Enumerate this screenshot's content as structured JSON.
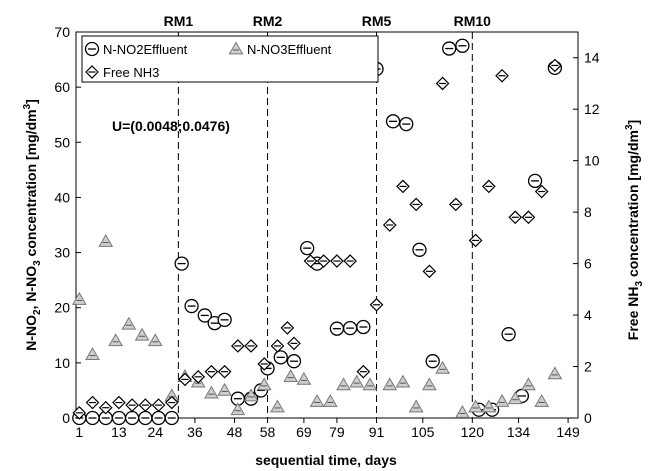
{
  "chart_data": {
    "type": "scatter",
    "xlabel": "sequential time, days",
    "ylabel_left": "N-NO2, N-NO3 concentration [mg/dm3]",
    "ylabel_right": "Free NH3 concentration [mg/dm3]",
    "xlim": [
      0,
      152
    ],
    "ylim_left": [
      0,
      70
    ],
    "ylim_right": [
      0,
      15
    ],
    "xticks": [
      1,
      13,
      24,
      36,
      48,
      58,
      69,
      79,
      91,
      105,
      120,
      134,
      149
    ],
    "yticks_left": [
      0,
      10,
      20,
      30,
      40,
      50,
      60,
      70
    ],
    "yticks_right": [
      0,
      2,
      4,
      6,
      8,
      10,
      12,
      14
    ],
    "legend_position": "top-left",
    "annotation": "U=(0.0048;0.0476)",
    "reference_lines": [
      {
        "x": 31,
        "label": "RM1"
      },
      {
        "x": 58,
        "label": "RM2"
      },
      {
        "x": 91,
        "label": "RM5"
      },
      {
        "x": 120,
        "label": "RM10"
      }
    ],
    "series": [
      {
        "name": "N-NO2Effluent",
        "axis": "left",
        "marker": "circle-dash",
        "points": [
          [
            1,
            0
          ],
          [
            5,
            0
          ],
          [
            9,
            0
          ],
          [
            13,
            0
          ],
          [
            17,
            0
          ],
          [
            21,
            0
          ],
          [
            25,
            0
          ],
          [
            29,
            0
          ],
          [
            32,
            28
          ],
          [
            35,
            20.3
          ],
          [
            39,
            18.6
          ],
          [
            42,
            17.2
          ],
          [
            45,
            17.8
          ],
          [
            49,
            3.5
          ],
          [
            53,
            3.5
          ],
          [
            56,
            5
          ],
          [
            58,
            9
          ],
          [
            62,
            11
          ],
          [
            66,
            10.3
          ],
          [
            70,
            30.8
          ],
          [
            73,
            28
          ],
          [
            79,
            16.2
          ],
          [
            83,
            16.3
          ],
          [
            87,
            16.5
          ],
          [
            91,
            63.3
          ],
          [
            96,
            53.8
          ],
          [
            100,
            53.3
          ],
          [
            104,
            30.5
          ],
          [
            108,
            10.3
          ],
          [
            113,
            67
          ],
          [
            117,
            67.5
          ],
          [
            122,
            1.5
          ],
          [
            126,
            1.5
          ],
          [
            131,
            15.2
          ],
          [
            135,
            4
          ],
          [
            139,
            43
          ],
          [
            145,
            63.5
          ]
        ]
      },
      {
        "name": "N-NO3Effluent",
        "axis": "left",
        "marker": "triangle-dash",
        "points": [
          [
            1,
            21.5
          ],
          [
            5,
            11.5
          ],
          [
            9,
            32
          ],
          [
            12,
            14
          ],
          [
            16,
            17
          ],
          [
            20,
            15
          ],
          [
            24,
            14
          ],
          [
            29,
            4
          ],
          [
            33,
            7.5
          ],
          [
            37,
            6.5
          ],
          [
            41,
            4.5
          ],
          [
            45,
            5
          ],
          [
            49,
            1.5
          ],
          [
            53,
            4
          ],
          [
            57,
            6
          ],
          [
            61,
            2
          ],
          [
            65,
            7.5
          ],
          [
            69,
            7
          ],
          [
            73,
            3
          ],
          [
            77,
            3
          ],
          [
            81,
            6
          ],
          [
            85,
            6.5
          ],
          [
            89,
            6
          ],
          [
            95,
            6
          ],
          [
            99,
            6.5
          ],
          [
            103,
            2
          ],
          [
            107,
            6
          ],
          [
            111,
            9
          ],
          [
            117,
            1
          ],
          [
            121,
            2
          ],
          [
            125,
            2
          ],
          [
            129,
            3
          ],
          [
            133,
            3.5
          ],
          [
            137,
            6
          ],
          [
            141,
            3
          ],
          [
            145,
            8
          ]
        ]
      },
      {
        "name": "Free NH3",
        "axis": "right",
        "marker": "diamond-dash",
        "points": [
          [
            1,
            0.2
          ],
          [
            5,
            0.6
          ],
          [
            9,
            0.4
          ],
          [
            13,
            0.6
          ],
          [
            17,
            0.5
          ],
          [
            21,
            0.5
          ],
          [
            25,
            0.5
          ],
          [
            29,
            0.6
          ],
          [
            33,
            1.5
          ],
          [
            37,
            1.6
          ],
          [
            41,
            1.8
          ],
          [
            45,
            1.8
          ],
          [
            49,
            2.8
          ],
          [
            53,
            2.8
          ],
          [
            57,
            2.1
          ],
          [
            61,
            2.8
          ],
          [
            64,
            3.5
          ],
          [
            66,
            2.9
          ],
          [
            71,
            6.1
          ],
          [
            75,
            6.1
          ],
          [
            79,
            6.1
          ],
          [
            83,
            6.1
          ],
          [
            87,
            1.8
          ],
          [
            91,
            4.4
          ],
          [
            95,
            7.5
          ],
          [
            99,
            9
          ],
          [
            103,
            8.3
          ],
          [
            107,
            5.7
          ],
          [
            111,
            13
          ],
          [
            115,
            8.3
          ],
          [
            121,
            6.9
          ],
          [
            125,
            9
          ],
          [
            129,
            13.3
          ],
          [
            133,
            7.8
          ],
          [
            137,
            7.8
          ],
          [
            141,
            8.8
          ],
          [
            145,
            13.7
          ]
        ]
      }
    ]
  }
}
